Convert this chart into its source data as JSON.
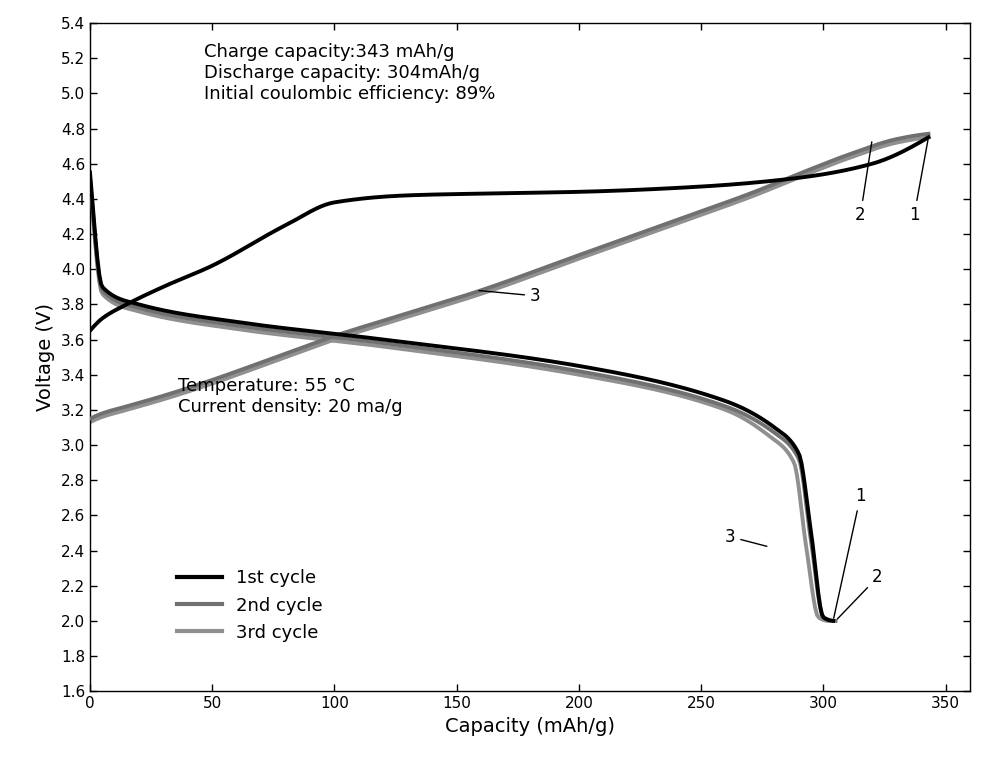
{
  "title_text": "Charge capacity:343 mAh/g\nDischarge capacity: 304mAh/g\nInitial coulombic efficiency: 89%",
  "annotation_text": "Temperature: 55 °C\nCurrent density: 20 ma/g",
  "xlabel": "Capacity (mAh/g)",
  "ylabel": "Voltage (V)",
  "xlim": [
    0,
    360
  ],
  "ylim": [
    1.6,
    5.4
  ],
  "xticks": [
    0,
    50,
    100,
    150,
    200,
    250,
    300,
    350
  ],
  "yticks": [
    1.6,
    1.8,
    2.0,
    2.2,
    2.4,
    2.6,
    2.8,
    3.0,
    3.2,
    3.4,
    3.6,
    3.8,
    4.0,
    4.2,
    4.4,
    4.6,
    4.8,
    5.0,
    5.2,
    5.4
  ],
  "color_1": "#000000",
  "color_2": "#707070",
  "color_3": "#909090",
  "lw1": 2.8,
  "lw23": 2.8,
  "figsize": [
    10.0,
    7.68
  ],
  "dpi": 100
}
